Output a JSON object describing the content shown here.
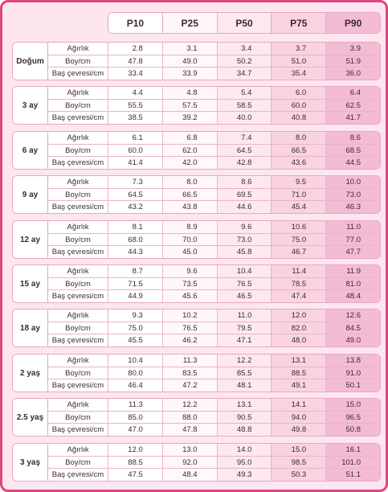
{
  "header": {
    "columns": [
      "P10",
      "P25",
      "P50",
      "P75",
      "P90"
    ]
  },
  "groups": [
    {
      "age": "Doğum",
      "rows": [
        {
          "label": "Ağırlık",
          "values": [
            "2.8",
            "3.1",
            "3.4",
            "3.7",
            "3.9"
          ]
        },
        {
          "label": "Boy/cm",
          "values": [
            "47.8",
            "49.0",
            "50.2",
            "51.0",
            "51.9"
          ]
        },
        {
          "label": "Baş çevresi/cm",
          "values": [
            "33.4",
            "33.9",
            "34.7",
            "35.4",
            "36.0"
          ]
        }
      ]
    },
    {
      "age": "3 ay",
      "rows": [
        {
          "label": "Ağırlık",
          "values": [
            "4.4",
            "4.8",
            "5.4",
            "6.0",
            "6.4"
          ]
        },
        {
          "label": "Boy/cm",
          "values": [
            "55.5",
            "57.5",
            "58.5",
            "60.0",
            "62.5"
          ]
        },
        {
          "label": "Baş çevresi/cm",
          "values": [
            "38.5",
            "39.2",
            "40.0",
            "40.8",
            "41.7"
          ]
        }
      ]
    },
    {
      "age": "6 ay",
      "rows": [
        {
          "label": "Ağırlık",
          "values": [
            "6.1",
            "6.8",
            "7.4",
            "8.0",
            "8.6"
          ]
        },
        {
          "label": "Boy/cm",
          "values": [
            "60.0",
            "62.0",
            "64.5",
            "66.5",
            "68.5"
          ]
        },
        {
          "label": "Baş çevresi/cm",
          "values": [
            "41.4",
            "42.0",
            "42.8",
            "43.6",
            "44.5"
          ]
        }
      ]
    },
    {
      "age": "9 ay",
      "rows": [
        {
          "label": "Ağırlık",
          "values": [
            "7.3",
            "8.0",
            "8.6",
            "9.5",
            "10.0"
          ]
        },
        {
          "label": "Boy/cm",
          "values": [
            "64.5",
            "66.5",
            "69.5",
            "71.0",
            "73.0"
          ]
        },
        {
          "label": "Baş çevresi/cm",
          "values": [
            "43.2",
            "43.8",
            "44.6",
            "45.4",
            "46.3"
          ]
        }
      ]
    },
    {
      "age": "12 ay",
      "rows": [
        {
          "label": "Ağırlık",
          "values": [
            "8.1",
            "8.9",
            "9.6",
            "10.6",
            "11.0"
          ]
        },
        {
          "label": "Boy/cm",
          "values": [
            "68.0",
            "70.0",
            "73.0",
            "75.0",
            "77.0"
          ]
        },
        {
          "label": "Baş çevresi/cm",
          "values": [
            "44.3",
            "45.0",
            "45.8",
            "46.7",
            "47.7"
          ]
        }
      ]
    },
    {
      "age": "15 ay",
      "rows": [
        {
          "label": "Ağırlık",
          "values": [
            "8.7",
            "9.6",
            "10.4",
            "11.4",
            "11.9"
          ]
        },
        {
          "label": "Boy/cm",
          "values": [
            "71.5",
            "73.5",
            "76.5",
            "78.5",
            "81.0"
          ]
        },
        {
          "label": "Baş çevresi/cm",
          "values": [
            "44.9",
            "45.6",
            "46.5",
            "47.4",
            "48.4"
          ]
        }
      ]
    },
    {
      "age": "18 ay",
      "rows": [
        {
          "label": "Ağırlık",
          "values": [
            "9.3",
            "10.2",
            "11.0",
            "12.0",
            "12.6"
          ]
        },
        {
          "label": "Boy/cm",
          "values": [
            "75.0",
            "76.5",
            "79.5",
            "82.0",
            "84.5"
          ]
        },
        {
          "label": "Baş çevresi/cm",
          "values": [
            "45.5",
            "46.2",
            "47.1",
            "48.0",
            "49.0"
          ]
        }
      ]
    },
    {
      "age": "2 yaş",
      "rows": [
        {
          "label": "Ağırlık",
          "values": [
            "10.4",
            "11.3",
            "12.2",
            "13.1",
            "13.8"
          ]
        },
        {
          "label": "Boy/cm",
          "values": [
            "80.0",
            "83.5",
            "85.5",
            "88.5",
            "91.0"
          ]
        },
        {
          "label": "Baş çevresi/cm",
          "values": [
            "46.4",
            "47.2",
            "48.1",
            "49.1",
            "50.1"
          ]
        }
      ]
    },
    {
      "age": "2.5 yaş",
      "rows": [
        {
          "label": "Ağırlık",
          "values": [
            "11.3",
            "12.2",
            "13.1",
            "14.1",
            "15.0"
          ]
        },
        {
          "label": "Boy/cm",
          "values": [
            "85.0",
            "88.0",
            "90.5",
            "94.0",
            "96.5"
          ]
        },
        {
          "label": "Baş çevresi/cm",
          "values": [
            "47.0",
            "47.8",
            "48.8",
            "49.8",
            "50.8"
          ]
        }
      ]
    },
    {
      "age": "3 yaş",
      "rows": [
        {
          "label": "Ağırlık",
          "values": [
            "12.0",
            "13.0",
            "14.0",
            "15.0",
            "16.1"
          ]
        },
        {
          "label": "Boy/cm",
          "values": [
            "88.5",
            "92.0",
            "95.0",
            "98.5",
            "101.0"
          ]
        },
        {
          "label": "Baş çevresi/cm",
          "values": [
            "47.5",
            "48.4",
            "49.3",
            "50.3",
            "51.1"
          ]
        }
      ]
    }
  ]
}
